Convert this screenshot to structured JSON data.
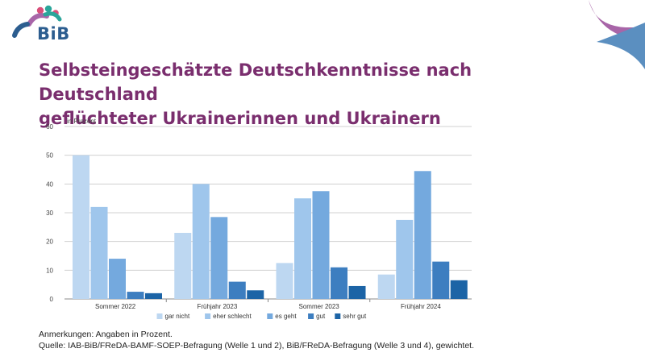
{
  "brand": {
    "logo_text": "BiB"
  },
  "header": {
    "title_line1": "Selbsteingeschätzte Deutschkenntnisse nach Deutschland",
    "title_line2": "geflüchteter Ukrainerinnen und Ukrainern"
  },
  "notes": {
    "remark": "Anmerkungen: Angaben in Prozent.",
    "source": "Quelle: IAB-BiB/FReDA-BAMF-SOEP-Befragung (Welle 1 und 2), BiB/FReDA-Befragung (Welle 3 und 4), gewichtet."
  },
  "colors": {
    "title": "#7a2e6e",
    "logo_text": "#2c5d8f",
    "logo_pink": "#d94f7a",
    "logo_teal": "#2aa59a",
    "corner_purple": "#a865a8",
    "corner_blue": "#5b8fc0"
  },
  "chart_data": {
    "type": "bar",
    "title": "",
    "unit_label": "in Prozent",
    "xlabel": "",
    "ylabel": "",
    "ylim": [
      0,
      60
    ],
    "yticks": [
      0,
      10,
      20,
      30,
      40,
      50,
      60
    ],
    "grid": true,
    "legend_position": "bottom",
    "categories": [
      "Sommer 2022",
      "Frühjahr 2023",
      "Sommer 2023",
      "Frühjahr 2024"
    ],
    "series": [
      {
        "name": "gar nicht",
        "color": "#bdd7f1",
        "values": [
          50,
          23,
          12.5,
          8.5
        ]
      },
      {
        "name": "eher schlecht",
        "color": "#9fc6ec",
        "values": [
          32,
          40,
          35,
          27.5
        ]
      },
      {
        "name": "es geht",
        "color": "#74a9de",
        "values": [
          14,
          28.5,
          37.5,
          44.5
        ]
      },
      {
        "name": "gut",
        "color": "#3d7ec0",
        "values": [
          2.5,
          6,
          11,
          13
        ]
      },
      {
        "name": "sehr gut",
        "color": "#1c64a6",
        "values": [
          2,
          3,
          4.5,
          6.5
        ]
      }
    ]
  }
}
